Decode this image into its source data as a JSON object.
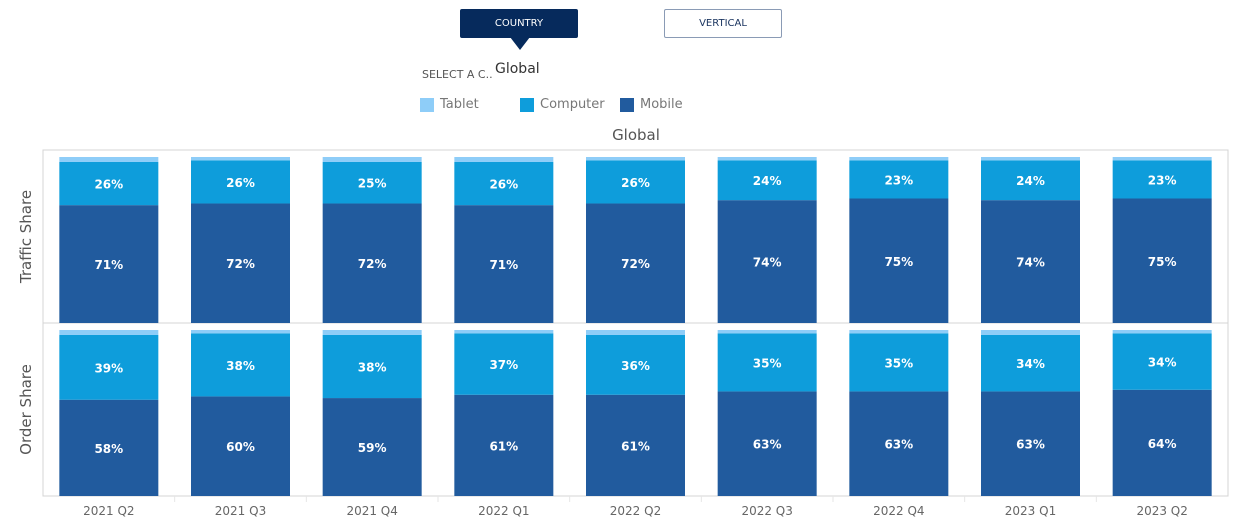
{
  "buttons": {
    "country": "COUNTRY",
    "vertical": "VERTICAL"
  },
  "selector": {
    "label": "SELECT A C..",
    "value": "Global"
  },
  "colors": {
    "Tablet": "#8ecdf8",
    "Computer": "#0e9ddb",
    "Mobile": "#215b9e"
  },
  "chart_data": {
    "type": "bar",
    "stacked": true,
    "title": "Global",
    "legend": {
      "placement": "top-left",
      "entries": [
        "Tablet",
        "Computer",
        "Mobile"
      ]
    },
    "categories": [
      "2021 Q2",
      "2021 Q3",
      "2021 Q4",
      "2022 Q1",
      "2022 Q2",
      "2022 Q3",
      "2022 Q4",
      "2023 Q1",
      "2023 Q2"
    ],
    "ylim": [
      0,
      100
    ],
    "panels": [
      {
        "ylabel": "Traffic Share",
        "series": [
          {
            "name": "Mobile",
            "values": [
              71,
              72,
              72,
              71,
              72,
              74,
              75,
              74,
              75
            ]
          },
          {
            "name": "Computer",
            "values": [
              26,
              26,
              25,
              26,
              26,
              24,
              23,
              24,
              23
            ]
          },
          {
            "name": "Tablet",
            "values": [
              3,
              2,
              3,
              3,
              2,
              2,
              2,
              2,
              2
            ]
          }
        ]
      },
      {
        "ylabel": "Order Share",
        "series": [
          {
            "name": "Mobile",
            "values": [
              58,
              60,
              59,
              61,
              61,
              63,
              63,
              63,
              64
            ]
          },
          {
            "name": "Computer",
            "values": [
              39,
              38,
              38,
              37,
              36,
              35,
              35,
              34,
              34
            ]
          },
          {
            "name": "Tablet",
            "values": [
              3,
              2,
              3,
              2,
              3,
              2,
              2,
              3,
              2
            ]
          }
        ]
      }
    ]
  }
}
